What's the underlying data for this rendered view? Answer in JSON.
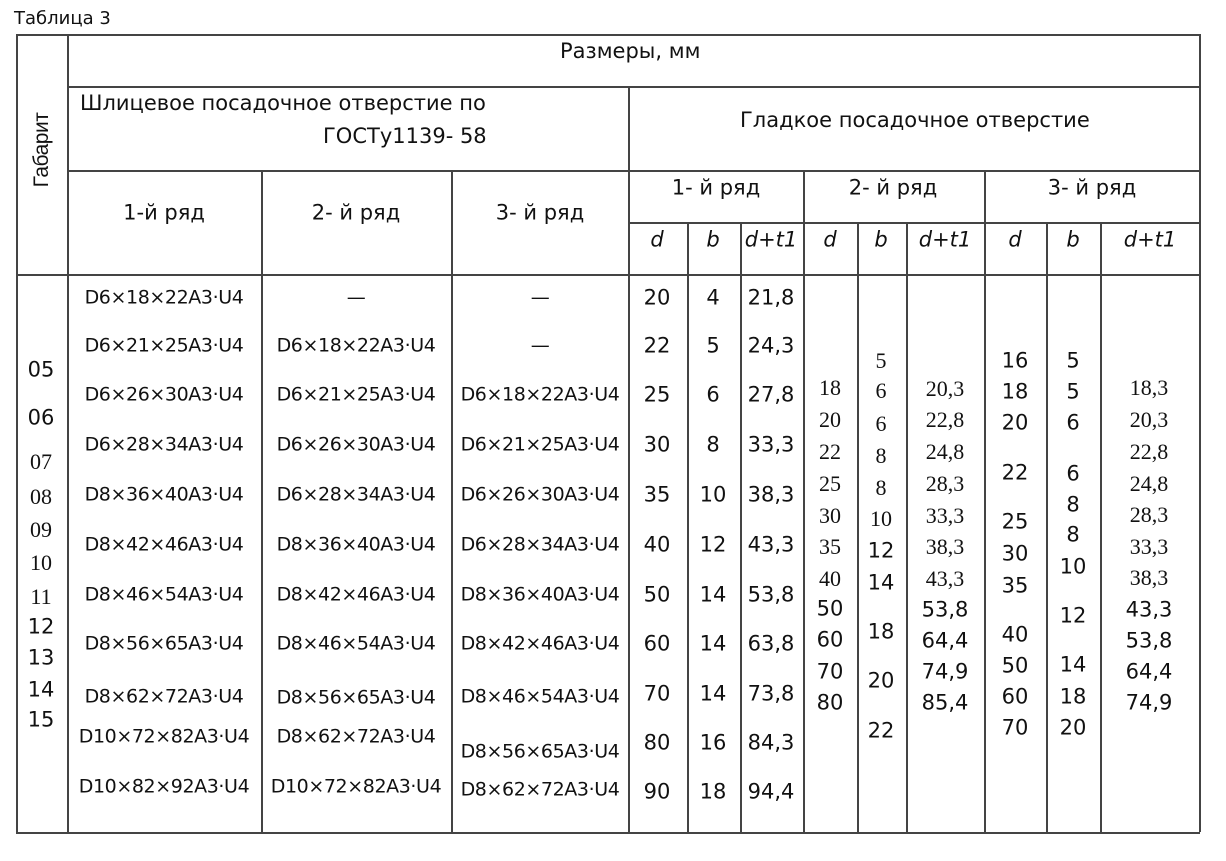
{
  "caption": "Таблица 3",
  "header": {
    "gabarit": "Габарит",
    "sizes": "Размеры, мм",
    "spline_line1": "Шлицевое посадочное отверстие по",
    "spline_line2": "ГОСТу1139- 58",
    "smooth": "Гладкое посадочное отверстие",
    "spline_rows": [
      "1-й ряд",
      "2- й ряд",
      "3- й ряд"
    ],
    "smooth_rows": [
      "1- й ряд",
      "2- й ряд",
      "3- й ряд"
    ],
    "sub_cols": [
      "d",
      "b",
      "d+t1"
    ]
  },
  "gabarit_values": [
    "05",
    "06",
    "07",
    "08",
    "09",
    "10",
    "11",
    "12",
    "13",
    "14",
    "15"
  ],
  "spline": {
    "row1": [
      "D6×18×22A3·U4",
      "D6×21×25A3·U4",
      "D6×26×30A3·U4",
      "D6×28×34A3·U4",
      "D8×36×40A3·U4",
      "D8×42×46A3·U4",
      "D8×46×54A3·U4",
      "D8×56×65A3·U4",
      "D8×62×72A3·U4",
      "D10×72×82A3·U4",
      "D10×82×92A3·U4"
    ],
    "row2": [
      "—",
      "D6×18×22A3·U4",
      "D6×21×25A3·U4",
      "D6×26×30A3·U4",
      "D6×28×34A3·U4",
      "D8×36×40A3·U4",
      "D8×42×46A3·U4",
      "D8×46×54A3·U4",
      "D8×56×65A3·U4",
      "D8×62×72A3·U4",
      "D10×72×82A3·U4"
    ],
    "row3": [
      "—",
      "—",
      "D6×18×22A3·U4",
      "D6×21×25A3·U4",
      "D6×26×30A3·U4",
      "D6×28×34A3·U4",
      "D8×36×40A3·U4",
      "D8×42×46A3·U4",
      "D8×46×54A3·U4",
      "D8×56×65A3·U4",
      "D8×62×72A3·U4"
    ]
  },
  "smooth": {
    "row1": {
      "d": [
        "20",
        "22",
        "25",
        "30",
        "35",
        "40",
        "50",
        "60",
        "70",
        "80",
        "90"
      ],
      "b": [
        "4",
        "5",
        "6",
        "8",
        "10",
        "12",
        "14",
        "14",
        "14",
        "16",
        "18"
      ],
      "dt": [
        "21,8",
        "24,3",
        "27,8",
        "33,3",
        "38,3",
        "43,3",
        "53,8",
        "63,8",
        "73,8",
        "84,3",
        "94,4"
      ]
    },
    "row2": {
      "d": [
        "18",
        "20",
        "22",
        "25",
        "30",
        "35",
        "40",
        "50",
        "60",
        "70",
        "80"
      ],
      "b": [
        "5",
        "6",
        "6",
        "8",
        "8",
        "10",
        "12",
        "14",
        "18",
        "20",
        "22"
      ],
      "dt": [
        "20,3",
        "22,8",
        "24,8",
        "28,3",
        "33,3",
        "38,3",
        "43,3",
        "53,8",
        "64,4",
        "74,9",
        "85,4"
      ]
    },
    "row3": {
      "d": [
        "16",
        "18",
        "20",
        "22",
        "25",
        "30",
        "35",
        "40",
        "50",
        "60",
        "70"
      ],
      "b": [
        "5",
        "5",
        "6",
        "6",
        "8",
        "8",
        "10",
        "12",
        "14",
        "18",
        "20"
      ],
      "dt": [
        "18,3",
        "20,3",
        "22,8",
        "24,8",
        "28,3",
        "33,3",
        "38,3",
        "43,3",
        "53,8",
        "64,4",
        "74,9"
      ]
    }
  }
}
